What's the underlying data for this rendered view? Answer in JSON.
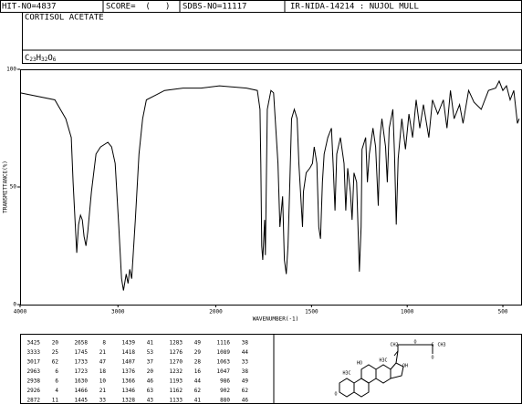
{
  "header": {
    "hit_no": "HIT-NO=4837",
    "score": "SCORE=  (   )",
    "sdbs_no": "SDBS-NO=11117",
    "method": "IR-NIDA-14214 : NUJOL MULL",
    "name": "CORTISOL ACETATE",
    "formula": [
      "C",
      "23",
      "H",
      "32",
      "O",
      "6"
    ]
  },
  "chart_data": {
    "type": "line",
    "x_label": "WAVENUMBER(-1)",
    "y_label": "TRANSMITTANCE(%)",
    "color": "#000000",
    "xlim": [
      4000,
      400
    ],
    "x_break": 2000,
    "xticks": [
      4000,
      3000,
      2000,
      1500,
      1000,
      500
    ],
    "ylim": [
      0,
      100
    ],
    "yticks": [
      0,
      50,
      100
    ],
    "x": [
      4000,
      3645,
      3533,
      3477,
      3458,
      3439,
      3421,
      3402,
      3383,
      3364,
      3346,
      3327,
      3308,
      3271,
      3224,
      3178,
      3103,
      3065,
      3028,
      2991,
      2963,
      2944,
      2916,
      2897,
      2879,
      2860,
      2822,
      2785,
      2748,
      2710,
      2617,
      2523,
      2336,
      2150,
      1981,
      1840,
      1783,
      1769,
      1765,
      1760,
      1755,
      1745,
      1741,
      1731,
      1712,
      1698,
      1675,
      1665,
      1651,
      1642,
      1632,
      1623,
      1613,
      1604,
      1590,
      1575,
      1566,
      1547,
      1542,
      1528,
      1509,
      1495,
      1486,
      1472,
      1462,
      1453,
      1443,
      1434,
      1415,
      1396,
      1387,
      1377,
      1368,
      1349,
      1330,
      1321,
      1311,
      1297,
      1288,
      1278,
      1264,
      1250,
      1241,
      1236,
      1217,
      1208,
      1198,
      1179,
      1165,
      1151,
      1142,
      1132,
      1113,
      1104,
      1094,
      1075,
      1066,
      1057,
      1047,
      1028,
      1009,
      991,
      972,
      953,
      934,
      915,
      887,
      868,
      840,
      811,
      792,
      774,
      755,
      726,
      708,
      679,
      651,
      613,
      575,
      538,
      519,
      500,
      481,
      462,
      443,
      424,
      415
    ],
    "values": [
      90,
      87,
      79,
      71,
      52,
      36,
      22,
      34,
      38,
      36,
      29,
      25,
      31,
      48,
      64,
      67,
      69,
      67,
      60,
      33,
      11,
      6,
      13,
      9,
      15,
      11,
      36,
      64,
      79,
      87,
      89,
      91,
      92,
      92,
      93,
      92,
      91,
      83,
      60,
      25,
      19,
      36,
      21,
      83,
      91,
      90,
      60,
      33,
      46,
      19,
      13,
      25,
      52,
      79,
      83,
      79,
      60,
      33,
      48,
      56,
      58,
      60,
      67,
      60,
      33,
      28,
      52,
      64,
      71,
      75,
      60,
      40,
      64,
      71,
      60,
      40,
      58,
      48,
      36,
      56,
      52,
      14,
      33,
      66,
      71,
      52,
      64,
      75,
      67,
      42,
      71,
      79,
      67,
      52,
      75,
      83,
      64,
      34,
      62,
      79,
      66,
      81,
      71,
      87,
      75,
      85,
      71,
      87,
      81,
      87,
      75,
      91,
      79,
      85,
      77,
      91,
      86,
      83,
      91,
      92,
      95,
      91,
      93,
      87,
      91,
      77,
      79
    ]
  },
  "peak_table": [
    [
      [
        3425,
        20
      ],
      [
        3333,
        25
      ],
      [
        3017,
        62
      ],
      [
        2963,
        6
      ],
      [
        2938,
        6
      ],
      [
        2926,
        4
      ],
      [
        2872,
        11
      ]
    ],
    [
      [
        2658,
        8
      ],
      [
        1745,
        21
      ],
      [
        1733,
        47
      ],
      [
        1723,
        18
      ],
      [
        1630,
        10
      ],
      [
        1466,
        21
      ],
      [
        1445,
        33
      ]
    ],
    [
      [
        1439,
        41
      ],
      [
        1418,
        53
      ],
      [
        1407,
        37
      ],
      [
        1376,
        20
      ],
      [
        1366,
        46
      ],
      [
        1346,
        63
      ],
      [
        1328,
        43
      ]
    ],
    [
      [
        1283,
        49
      ],
      [
        1276,
        29
      ],
      [
        1270,
        28
      ],
      [
        1232,
        16
      ],
      [
        1193,
        44
      ],
      [
        1162,
        62
      ],
      [
        1133,
        41
      ]
    ],
    [
      [
        1116,
        38
      ],
      [
        1089,
        44
      ],
      [
        1063,
        33
      ],
      [
        1047,
        38
      ],
      [
        986,
        49
      ],
      [
        902,
        62
      ],
      [
        880,
        46
      ]
    ]
  ],
  "structure_labels": [
    "CH2",
    "O",
    "C",
    "CH3",
    "O",
    "HO",
    "H3C",
    "H3C",
    "OH",
    "O"
  ]
}
